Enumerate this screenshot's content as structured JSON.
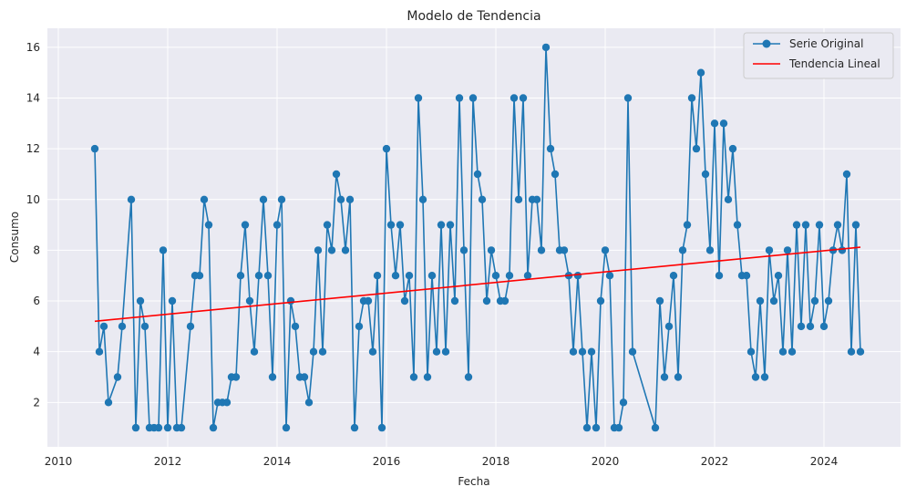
{
  "chart_data": {
    "type": "line",
    "title": "Modelo de Tendencia",
    "xlabel": "Fecha",
    "ylabel": "Consumo",
    "xlim": [
      2009.8,
      2025.4
    ],
    "ylim": [
      0.25,
      16.75
    ],
    "x_ticks": [
      2010,
      2012,
      2014,
      2016,
      2018,
      2020,
      2022,
      2024
    ],
    "y_ticks": [
      2,
      4,
      6,
      8,
      10,
      12,
      14,
      16
    ],
    "grid": true,
    "legend_position": "top-right",
    "series": [
      {
        "name": "Serie Original",
        "color": "#1f77b4",
        "marker": "circle",
        "x": [
          "2010-09",
          "2010-10",
          "2010-11",
          "2010-12",
          "2011-02",
          "2011-03",
          "2011-05",
          "2011-06",
          "2011-07",
          "2011-08",
          "2011-09",
          "2011-10",
          "2011-11",
          "2011-12",
          "2012-01",
          "2012-02",
          "2012-03",
          "2012-04",
          "2012-06",
          "2012-07",
          "2012-08",
          "2012-09",
          "2012-10",
          "2012-11",
          "2012-12",
          "2013-01",
          "2013-02",
          "2013-03",
          "2013-04",
          "2013-05",
          "2013-06",
          "2013-07",
          "2013-08",
          "2013-09",
          "2013-10",
          "2013-11",
          "2013-12",
          "2014-01",
          "2014-02",
          "2014-03",
          "2014-04",
          "2014-05",
          "2014-06",
          "2014-07",
          "2014-08",
          "2014-09",
          "2014-10",
          "2014-11",
          "2014-12",
          "2015-01",
          "2015-02",
          "2015-03",
          "2015-04",
          "2015-05",
          "2015-06",
          "2015-07",
          "2015-08",
          "2015-09",
          "2015-10",
          "2015-11",
          "2015-12",
          "2016-01",
          "2016-02",
          "2016-03",
          "2016-04",
          "2016-05",
          "2016-06",
          "2016-07",
          "2016-08",
          "2016-09",
          "2016-10",
          "2016-11",
          "2016-12",
          "2017-01",
          "2017-02",
          "2017-03",
          "2017-04",
          "2017-05",
          "2017-06",
          "2017-07",
          "2017-08",
          "2017-09",
          "2017-10",
          "2017-11",
          "2017-12",
          "2018-01",
          "2018-02",
          "2018-03",
          "2018-04",
          "2018-05",
          "2018-06",
          "2018-07",
          "2018-08",
          "2018-09",
          "2018-10",
          "2018-11",
          "2018-12",
          "2019-01",
          "2019-02",
          "2019-03",
          "2019-04",
          "2019-05",
          "2019-06",
          "2019-07",
          "2019-08",
          "2019-09",
          "2019-10",
          "2019-11",
          "2019-12",
          "2020-01",
          "2020-02",
          "2020-03",
          "2020-04",
          "2020-05",
          "2020-06",
          "2020-07",
          "2020-12",
          "2021-01",
          "2021-02",
          "2021-03",
          "2021-04",
          "2021-05",
          "2021-06",
          "2021-07",
          "2021-08",
          "2021-09",
          "2021-10",
          "2021-11",
          "2021-12",
          "2022-01",
          "2022-02",
          "2022-03",
          "2022-04",
          "2022-05",
          "2022-06",
          "2022-07",
          "2022-08",
          "2022-09",
          "2022-10",
          "2022-11",
          "2022-12",
          "2023-01",
          "2023-02",
          "2023-03",
          "2023-04",
          "2023-05",
          "2023-06",
          "2023-07",
          "2023-08",
          "2023-09",
          "2023-10",
          "2023-11",
          "2023-12",
          "2024-01",
          "2024-02",
          "2024-03",
          "2024-04",
          "2024-05",
          "2024-06",
          "2024-07",
          "2024-08",
          "2024-09"
        ],
        "y": [
          12,
          4,
          5,
          2,
          3,
          5,
          10,
          1,
          6,
          5,
          1,
          1,
          1,
          8,
          1,
          6,
          1,
          1,
          5,
          7,
          7,
          10,
          9,
          1,
          2,
          2,
          2,
          3,
          3,
          7,
          9,
          6,
          4,
          7,
          10,
          7,
          3,
          9,
          10,
          1,
          6,
          5,
          3,
          3,
          2,
          4,
          8,
          4,
          9,
          8,
          11,
          10,
          8,
          10,
          1,
          5,
          6,
          6,
          4,
          7,
          1,
          12,
          9,
          7,
          9,
          6,
          7,
          3,
          14,
          10,
          3,
          7,
          4,
          9,
          4,
          9,
          6,
          14,
          8,
          3,
          14,
          11,
          10,
          6,
          8,
          7,
          6,
          6,
          7,
          14,
          10,
          14,
          7,
          10,
          10,
          8,
          16,
          12,
          11,
          8,
          8,
          7,
          4,
          7,
          4,
          1,
          4,
          1,
          6,
          8,
          7,
          1,
          1,
          2,
          14,
          4,
          1,
          6,
          3,
          5,
          7,
          3,
          8,
          9,
          14,
          12,
          15,
          11,
          8,
          13,
          7,
          13,
          10,
          12,
          9,
          7,
          7,
          4,
          3,
          6,
          3,
          8,
          6,
          7,
          4,
          8,
          4,
          9,
          5,
          9,
          5,
          6,
          9,
          5,
          6,
          8,
          9,
          8,
          11,
          4,
          9,
          4
        ]
      },
      {
        "name": "Tendencia Lineal",
        "color": "#ff0000",
        "x": [
          "2010-09",
          "2024-09"
        ],
        "y": [
          5.2,
          8.12
        ]
      }
    ]
  }
}
